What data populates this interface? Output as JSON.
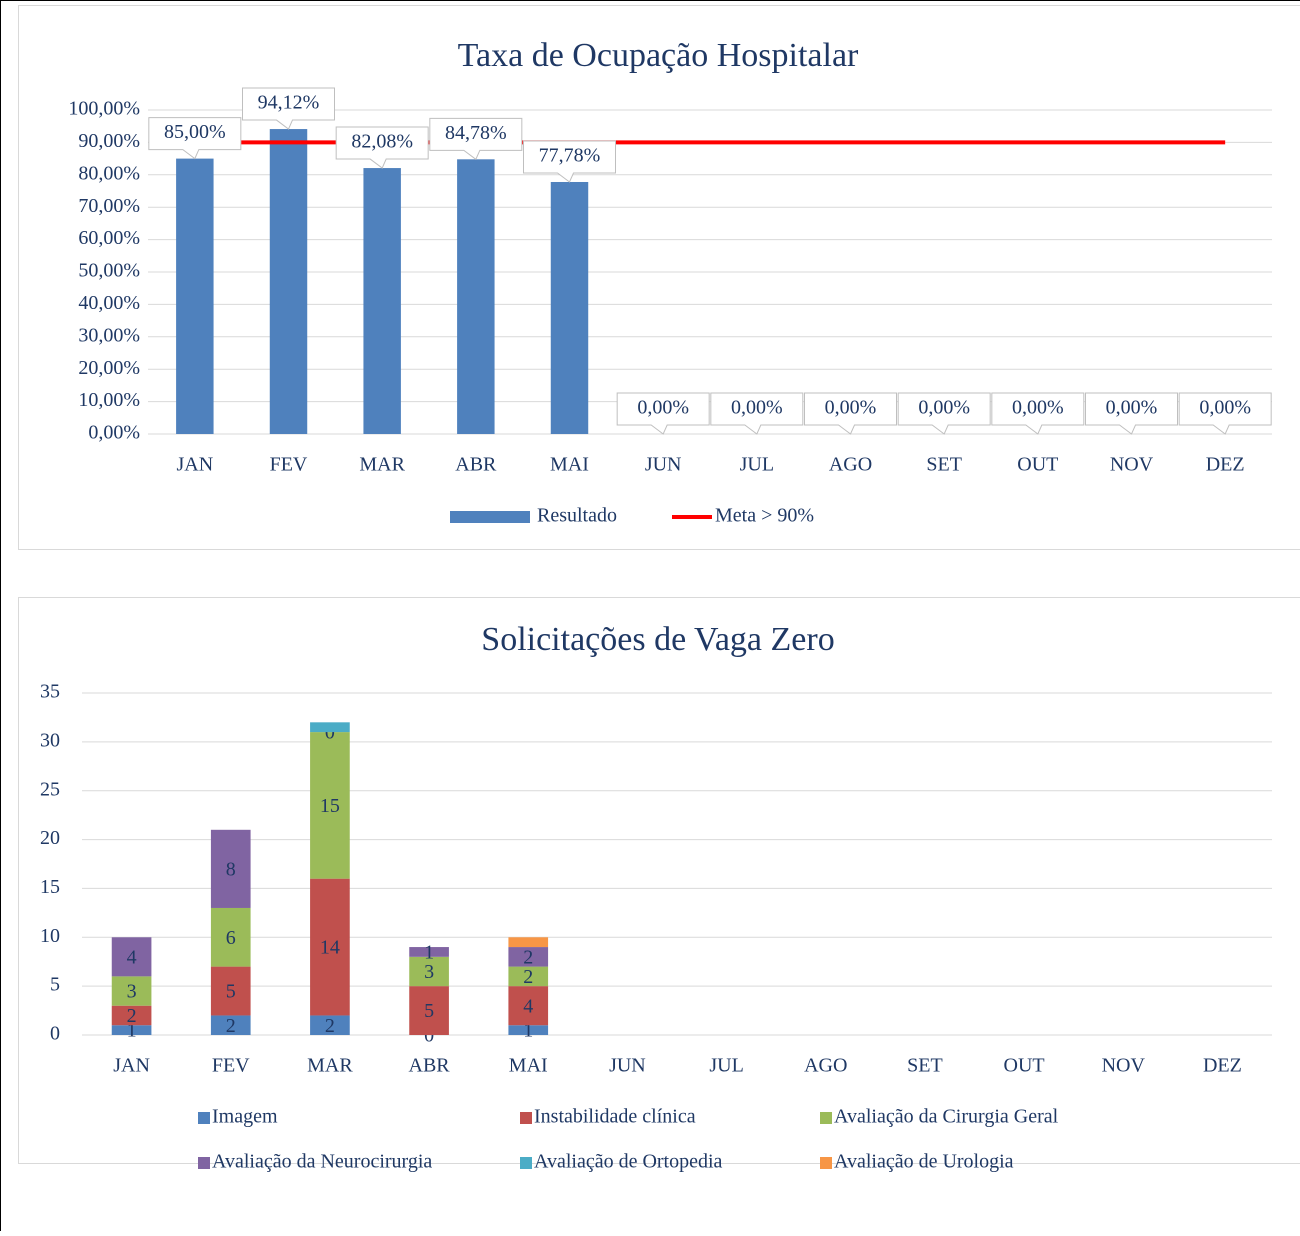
{
  "chart_data": [
    {
      "type": "bar",
      "title": "Taxa de Ocupação Hospitalar",
      "categories": [
        "JAN",
        "FEV",
        "MAR",
        "ABR",
        "MAI",
        "JUN",
        "JUL",
        "AGO",
        "SET",
        "OUT",
        "NOV",
        "DEZ"
      ],
      "series": [
        {
          "name": "Resultado",
          "type": "bar",
          "color": "#4f81bd",
          "values": [
            85,
            94.12,
            82.08,
            84.78,
            77.78,
            0,
            0,
            0,
            0,
            0,
            0,
            0
          ],
          "value_labels": [
            "85,00%",
            "94,12%",
            "82,08%",
            "84,78%",
            "77,78%",
            "0,00%",
            "0,00%",
            "0,00%",
            "0,00%",
            "0,00%",
            "0,00%",
            "0,00%"
          ]
        },
        {
          "name": "Meta > 90%",
          "type": "line",
          "color": "#ff0000",
          "values": [
            90,
            90,
            90,
            90,
            90,
            90,
            90,
            90,
            90,
            90,
            90,
            90
          ]
        }
      ],
      "ylim": [
        0,
        100
      ],
      "yticks": [
        {
          "value": 0,
          "label": "0,00%"
        },
        {
          "value": 10,
          "label": "10,00%"
        },
        {
          "value": 20,
          "label": "20,00%"
        },
        {
          "value": 30,
          "label": "30,00%"
        },
        {
          "value": 40,
          "label": "40,00%"
        },
        {
          "value": 50,
          "label": "50,00%"
        },
        {
          "value": 60,
          "label": "60,00%"
        },
        {
          "value": 70,
          "label": "70,00%"
        },
        {
          "value": 80,
          "label": "80,00%"
        },
        {
          "value": 90,
          "label": "90,00%"
        },
        {
          "value": 100,
          "label": "100,00%"
        }
      ],
      "grid": true,
      "legend": "bottom"
    },
    {
      "type": "stacked_bar",
      "title": "Solicitações de Vaga Zero",
      "categories": [
        "JAN",
        "FEV",
        "MAR",
        "ABR",
        "MAI",
        "JUN",
        "JUL",
        "AGO",
        "SET",
        "OUT",
        "NOV",
        "DEZ"
      ],
      "series": [
        {
          "name": "Imagem",
          "color": "#4f81bd",
          "data_labels": true,
          "values": [
            1,
            2,
            2,
            0,
            1,
            null,
            null,
            null,
            null,
            null,
            null,
            null
          ]
        },
        {
          "name": "Instabilidade clínica",
          "color": "#c0504d",
          "data_labels": true,
          "values": [
            2,
            5,
            14,
            5,
            4,
            null,
            null,
            null,
            null,
            null,
            null,
            null
          ]
        },
        {
          "name": "Avaliação da Cirurgia Geral",
          "color": "#9bbb59",
          "data_labels": true,
          "values": [
            3,
            6,
            15,
            3,
            2,
            null,
            null,
            null,
            null,
            null,
            null,
            null
          ]
        },
        {
          "name": "Avaliação da Neurocirurgia",
          "color": "#8064a2",
          "data_labels": true,
          "values": [
            4,
            8,
            0,
            1,
            2,
            null,
            null,
            null,
            null,
            null,
            null,
            null
          ]
        },
        {
          "name": "Avaliação de Ortopedia",
          "color": "#4bacc6",
          "data_labels": false,
          "values": [
            null,
            null,
            1,
            null,
            null,
            null,
            null,
            null,
            null,
            null,
            null,
            null
          ]
        },
        {
          "name": "Avaliação de Urologia",
          "color": "#f79646",
          "data_labels": false,
          "values": [
            null,
            null,
            null,
            null,
            1,
            null,
            null,
            null,
            null,
            null,
            null,
            null
          ]
        }
      ],
      "ylim": [
        0,
        35
      ],
      "yticks": [
        0,
        5,
        10,
        15,
        20,
        25,
        30,
        35
      ],
      "grid": true,
      "legend": "bottom"
    }
  ]
}
